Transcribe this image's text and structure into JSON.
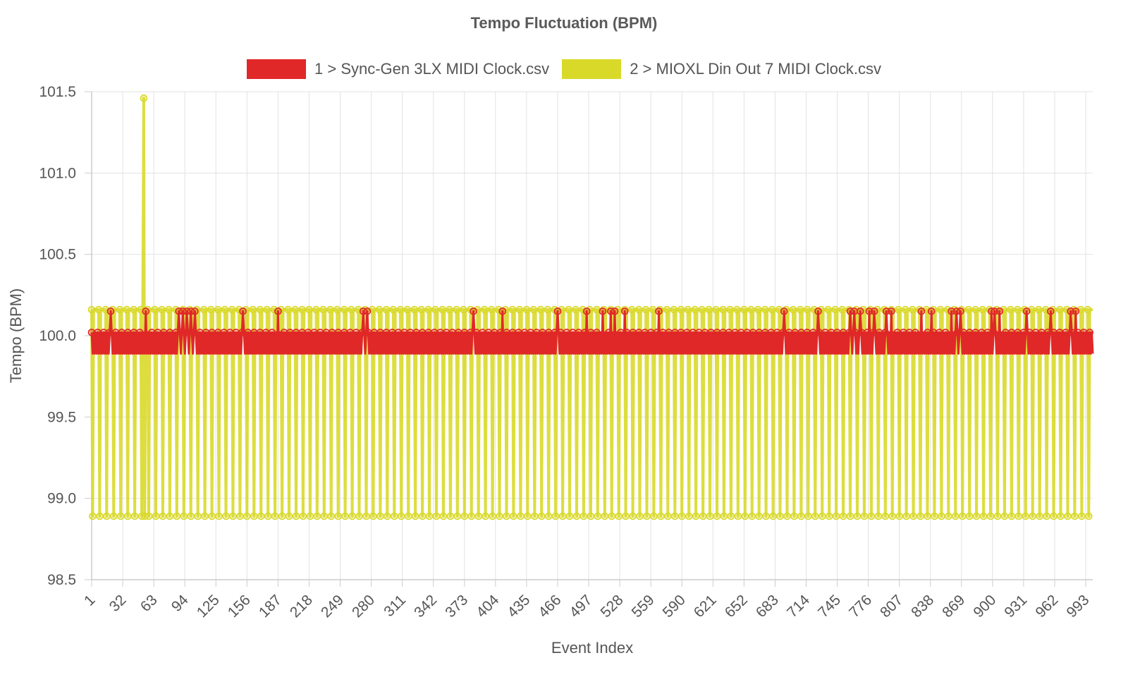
{
  "chart_data": {
    "type": "line",
    "title": "Tempo Fluctuation (BPM)",
    "xlabel": "Event Index",
    "ylabel": "Tempo (BPM)",
    "ylim": [
      98.5,
      101.5
    ],
    "yticks": [
      "101.5",
      "101.0",
      "100.5",
      "100.0",
      "99.5",
      "99.0",
      "98.5"
    ],
    "xlim": [
      1,
      1000
    ],
    "xticks": [
      "1",
      "32",
      "63",
      "94",
      "125",
      "156",
      "187",
      "218",
      "249",
      "280",
      "311",
      "342",
      "373",
      "404",
      "435",
      "466",
      "497",
      "528",
      "559",
      "590",
      "621",
      "652",
      "683",
      "714",
      "745",
      "776",
      "807",
      "838",
      "869",
      "900",
      "931",
      "962",
      "993"
    ],
    "grid": true,
    "legend_position": "top",
    "series": [
      {
        "name": "1 > Sync-Gen 3LX MIDI Clock.csv",
        "color": "#e02828",
        "values": [
          100.02,
          99.89,
          100.15
        ],
        "pattern": "alternates between 100.02 and 99.89 every event, with occasional spikes to 100.15",
        "spikes_at": [
          20,
          55,
          88,
          92,
          96,
          100,
          104,
          152,
          187,
          272,
          276,
          382,
          411,
          466,
          495,
          511,
          519,
          523,
          533,
          567,
          692,
          726,
          758,
          762,
          768,
          777,
          782,
          794,
          799,
          829,
          839,
          859,
          864,
          868,
          899,
          902,
          907,
          934,
          958,
          978,
          983
        ]
      },
      {
        "name": "2 > MIOXL Din Out 7 MIDI Clock.csv",
        "color": "#d9d92a",
        "values": [
          100.16,
          98.89,
          101.46
        ],
        "pattern": "mostly 100.16 with a drop to 98.89 roughly every 7 events; single spike to 101.46",
        "spike_at": 53,
        "spike_value": 101.46
      }
    ]
  }
}
